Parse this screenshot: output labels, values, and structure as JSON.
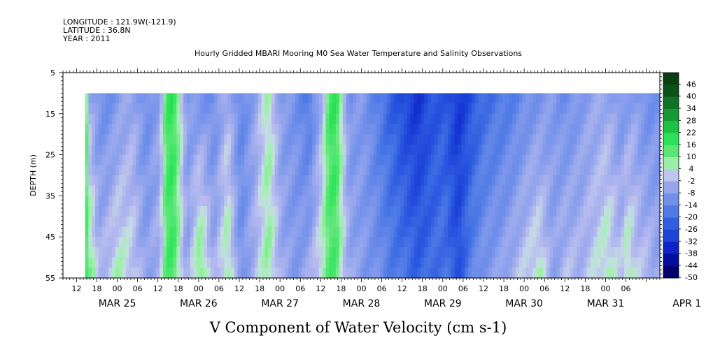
{
  "header": {
    "longitude": "LONGITUDE : 121.9W(-121.9)",
    "latitude": "LATITUDE : 36.8N",
    "year": "YEAR : 2011",
    "title": "Hourly Gridded MBARI Mooring M0 Sea Water Temperature and Salinity Observations"
  },
  "footer": {
    "variable_title": "V Component of Water Velocity (cm s-1)"
  },
  "chart_data": {
    "type": "heatmap",
    "title": "Hourly Gridded MBARI Mooring M0 Sea Water Temperature and Salinity Observations",
    "xlabel": "",
    "ylabel": "DEPTH (m)",
    "ylim": [
      55,
      5
    ],
    "y_ticks": [
      5,
      15,
      25,
      35,
      45,
      55
    ],
    "x_hour_ticks": [
      "12",
      "18",
      "00",
      "06",
      "12",
      "18",
      "00",
      "06",
      "12",
      "18",
      "00",
      "06",
      "12",
      "18",
      "00",
      "06",
      "12",
      "18",
      "00",
      "06",
      "12",
      "18",
      "00",
      "06",
      "12",
      "18",
      "00",
      "06"
    ],
    "x_day_labels": [
      "MAR 25",
      "MAR 26",
      "MAR 27",
      "MAR 28",
      "MAR 29",
      "MAR 30",
      "MAR 31",
      "APR  1"
    ],
    "x_start_hour": 8,
    "x_hours": 176,
    "data_start_hour": 14.5,
    "data_depth_top": 10,
    "colorbar_levels": [
      "46",
      "40",
      "34",
      "28",
      "22",
      "16",
      "10",
      "4",
      "-2",
      "-8",
      "-14",
      "-20",
      "-26",
      "-32",
      "-38",
      "-44",
      "-50"
    ],
    "colors": {
      "strong_positive": "#0b3d12",
      "positive": "#2ee65a",
      "weak_positive": "#a3f0b0",
      "near_zero": "#b8bcef",
      "weak_negative": "#8ea2ec",
      "negative": "#4a78e4",
      "strong_negative": "#1a3fd6",
      "extreme_negative": "#000066"
    },
    "profile_hours": [
      14,
      15,
      16,
      18,
      20,
      24,
      28,
      32,
      36,
      38,
      40,
      42,
      44,
      48,
      52,
      56,
      60,
      64,
      68,
      72,
      76,
      80,
      84,
      86,
      88,
      90,
      92,
      96,
      100,
      104,
      108,
      112,
      116,
      120,
      124,
      128,
      132,
      136,
      140,
      144,
      148,
      152,
      156,
      160,
      164,
      168,
      172,
      174,
      176,
      178,
      180,
      182
    ],
    "profile_top": [
      18,
      -4,
      -8,
      -12,
      -14,
      -10,
      -6,
      -14,
      -8,
      14,
      16,
      4,
      -10,
      -12,
      -14,
      -4,
      -16,
      -8,
      4,
      -10,
      -12,
      -20,
      -4,
      14,
      16,
      0,
      -12,
      -10,
      -18,
      -24,
      -30,
      -34,
      -28,
      -26,
      -34,
      -28,
      -22,
      -20,
      -18,
      -14,
      -12,
      -10,
      -14,
      -10,
      -8,
      -6,
      -12,
      -10,
      -8,
      -12,
      -14,
      -12
    ],
    "profile_bottom": [
      18,
      8,
      6,
      -4,
      -2,
      4,
      0,
      -8,
      -4,
      12,
      14,
      2,
      -8,
      10,
      -6,
      6,
      -12,
      -4,
      6,
      -6,
      -10,
      -6,
      4,
      12,
      12,
      0,
      -6,
      -10,
      -12,
      -18,
      -20,
      -24,
      -22,
      -20,
      -28,
      -16,
      -10,
      -8,
      -4,
      0,
      4,
      -8,
      -2,
      -4,
      0,
      4,
      -2,
      6,
      0,
      -2,
      -2,
      -6
    ]
  }
}
